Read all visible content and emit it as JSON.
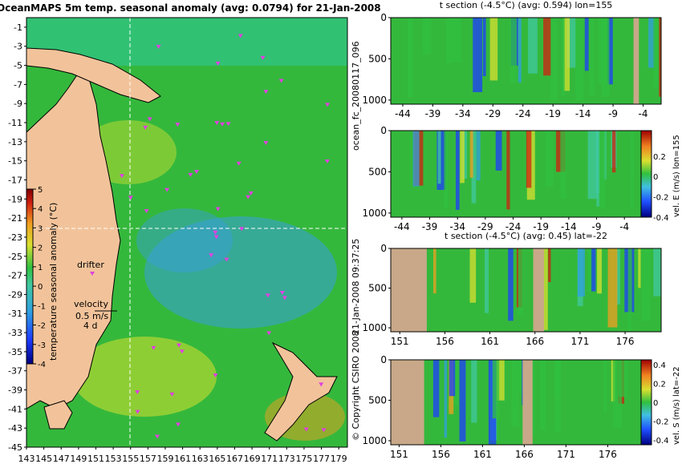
{
  "chart_data": [
    {
      "type": "heatmap",
      "title": "OceanMAPS 5m temp. seasonal anomaly (avg: 0.0794) for 21-Jan-2008",
      "x_ticks": [
        "143",
        "145",
        "147",
        "149",
        "151",
        "153",
        "155",
        "157",
        "159",
        "161",
        "163",
        "165",
        "167",
        "169",
        "171",
        "173",
        "175",
        "177",
        "179"
      ],
      "y_ticks": [
        "-1",
        "-3",
        "-5",
        "-7",
        "-9",
        "-11",
        "-13",
        "-15",
        "-17",
        "-19",
        "-21",
        "-23",
        "-25",
        "-27",
        "-29",
        "-31",
        "-33",
        "-35",
        "-37",
        "-39",
        "-41",
        "-43",
        "-45"
      ],
      "xlim": [
        143,
        180
      ],
      "ylim": [
        -45,
        0
      ],
      "section_lon": 155,
      "section_lat": -22,
      "colorbar": {
        "label": "temperature seasonal anomaly (°C)",
        "ticks": [
          "5",
          "4",
          "3",
          "2",
          "1",
          "0",
          "-1",
          "-2",
          "-3",
          "-4"
        ],
        "range": [
          -4,
          5
        ]
      },
      "annotations": {
        "drifter": "drifter",
        "velocity": "velocity",
        "speed": "0.5 m/s",
        "days": "4 d"
      }
    },
    {
      "type": "heatmap",
      "title": "t section (-4.5°C) (avg: 0.594) lon=155",
      "x_ticks": [
        "-44",
        "-39",
        "-34",
        "-29",
        "-24",
        "-19",
        "-14",
        "-9",
        "-4"
      ],
      "y_ticks": [
        "0",
        "500",
        "1000"
      ],
      "xlim": [
        -46,
        -1
      ],
      "ylim": [
        1050,
        0
      ]
    },
    {
      "type": "heatmap",
      "x_ticks": [
        "-44",
        "-39",
        "-34",
        "-29",
        "-24",
        "-19",
        "-14",
        "-9",
        "-4"
      ],
      "y_ticks": [
        "0",
        "500",
        "1000"
      ],
      "xlim": [
        -46,
        -1
      ],
      "ylim": [
        1050,
        0
      ],
      "colorbar": {
        "label": "vel. E (m/s) lon=155",
        "ticks": [
          "0.2",
          "0",
          "-0.2",
          "-0.4"
        ],
        "range": [
          -0.4,
          0.45
        ]
      }
    },
    {
      "type": "heatmap",
      "title": "t section (-4.5°C) (avg: 0.45) lat=-22",
      "x_ticks": [
        "151",
        "156",
        "161",
        "166",
        "171",
        "176"
      ],
      "y_ticks": [
        "0",
        "500",
        "1000"
      ],
      "xlim": [
        150,
        180
      ],
      "ylim": [
        1050,
        0
      ]
    },
    {
      "type": "heatmap",
      "x_ticks": [
        "151",
        "156",
        "161",
        "166",
        "171",
        "176"
      ],
      "y_ticks": [
        "0",
        "500",
        "1000"
      ],
      "xlim": [
        150,
        180
      ],
      "ylim": [
        1050,
        0
      ],
      "colorbar": {
        "label": "vel. S (m/s) lat=-22",
        "ticks": [
          "0.4",
          "0.2",
          "0",
          "-0.2",
          "-0.4"
        ],
        "range": [
          -0.45,
          0.45
        ]
      }
    }
  ],
  "side_labels": {
    "forecast_id": "ocean_fc_20080117_096",
    "issued": "21-Jan-2008 09:37:25",
    "copyright": "© Copyright CSIRO 2008"
  }
}
